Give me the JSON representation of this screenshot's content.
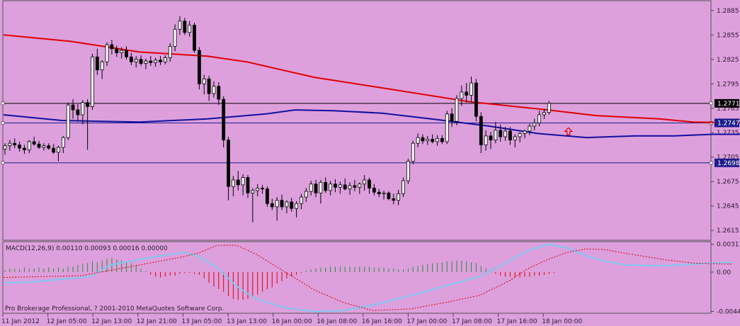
{
  "colors": {
    "background": "#dda0dd",
    "grid_line": "#555555",
    "candle_up": "#ffffff",
    "candle_down": "#000000",
    "ma_red": "#e00000",
    "ma_blue": "#1010a0",
    "hline_black": "#000000",
    "hline_blue": "#1c1c8c",
    "macd_main": "#7ec8f0",
    "macd_signal": "#e00000",
    "hist_pos": "#2e8b3a",
    "hist_neg": "#e00000",
    "arrow": "#e00000"
  },
  "chart_data": {
    "type": "candlestick",
    "symbol": "",
    "price_axis": {
      "ylim": [
        1.2603,
        1.2897
      ],
      "ticks": [
        1.2885,
        1.2855,
        1.2825,
        1.2795,
        1.2765,
        1.2735,
        1.2705,
        1.2675,
        1.2645,
        1.2615
      ]
    },
    "time_labels": [
      "11 Jan 2012",
      "12 Jan 05:00",
      "12 Jan 13:00",
      "12 Jan 21:00",
      "13 Jan 05:00",
      "13 Jan 13:00",
      "16 Jan 00:00",
      "16 Jan 08:00",
      "16 Jan 16:00",
      "17 Jan 00:00",
      "17 Jan 08:00",
      "17 Jan 16:00",
      "18 Jan 00:00"
    ],
    "candles": [
      [
        1.2715,
        1.2722,
        1.2708,
        1.2719
      ],
      [
        1.2719,
        1.2726,
        1.2713,
        1.2722
      ],
      [
        1.2722,
        1.2728,
        1.2716,
        1.272
      ],
      [
        1.272,
        1.2724,
        1.2712,
        1.2716
      ],
      [
        1.2716,
        1.272,
        1.2709,
        1.2714
      ],
      [
        1.2714,
        1.2726,
        1.271,
        1.2724
      ],
      [
        1.2724,
        1.273,
        1.2719,
        1.2721
      ],
      [
        1.2721,
        1.2725,
        1.2715,
        1.2717
      ],
      [
        1.2717,
        1.2722,
        1.2713,
        1.2719
      ],
      [
        1.2719,
        1.2722,
        1.2714,
        1.2716
      ],
      [
        1.2716,
        1.2721,
        1.2709,
        1.2711
      ],
      [
        1.2711,
        1.2719,
        1.27,
        1.2717
      ],
      [
        1.2717,
        1.2731,
        1.271,
        1.2729
      ],
      [
        1.2729,
        1.2772,
        1.2726,
        1.2769
      ],
      [
        1.2769,
        1.2776,
        1.2752,
        1.2763
      ],
      [
        1.2763,
        1.277,
        1.2749,
        1.2757
      ],
      [
        1.2757,
        1.2775,
        1.2745,
        1.2772
      ],
      [
        1.2772,
        1.2776,
        1.2714,
        1.2767
      ],
      [
        1.2767,
        1.2832,
        1.2763,
        1.2828
      ],
      [
        1.2828,
        1.2838,
        1.2806,
        1.2812
      ],
      [
        1.2812,
        1.2824,
        1.2801,
        1.2822
      ],
      [
        1.2822,
        1.2846,
        1.2817,
        1.2843
      ],
      [
        1.2843,
        1.2849,
        1.2831,
        1.2838
      ],
      [
        1.2838,
        1.2842,
        1.2828,
        1.2833
      ],
      [
        1.2833,
        1.284,
        1.2826,
        1.2836
      ],
      [
        1.2836,
        1.2841,
        1.2825,
        1.2828
      ],
      [
        1.2828,
        1.2833,
        1.2818,
        1.2822
      ],
      [
        1.2822,
        1.2829,
        1.2815,
        1.2825
      ],
      [
        1.2825,
        1.283,
        1.2817,
        1.282
      ],
      [
        1.282,
        1.2826,
        1.2813,
        1.2823
      ],
      [
        1.2823,
        1.2829,
        1.2817,
        1.2821
      ],
      [
        1.2821,
        1.2827,
        1.2816,
        1.2824
      ],
      [
        1.2824,
        1.2829,
        1.2818,
        1.2822
      ],
      [
        1.2822,
        1.283,
        1.2819,
        1.2827
      ],
      [
        1.2827,
        1.2845,
        1.2822,
        1.2841
      ],
      [
        1.2841,
        1.2868,
        1.2835,
        1.2862
      ],
      [
        1.2862,
        1.2878,
        1.2855,
        1.2872
      ],
      [
        1.2872,
        1.2876,
        1.2855,
        1.2858
      ],
      [
        1.2858,
        1.2872,
        1.2853,
        1.2867
      ],
      [
        1.2867,
        1.287,
        1.2833,
        1.2836
      ],
      [
        1.2836,
        1.284,
        1.2788,
        1.2795
      ],
      [
        1.2795,
        1.2806,
        1.2782,
        1.2801
      ],
      [
        1.2801,
        1.2805,
        1.2774,
        1.2783
      ],
      [
        1.2783,
        1.2798,
        1.2778,
        1.2792
      ],
      [
        1.2792,
        1.2797,
        1.2769,
        1.2776
      ],
      [
        1.2776,
        1.278,
        1.2717,
        1.2726
      ],
      [
        1.2726,
        1.273,
        1.2652,
        1.2669
      ],
      [
        1.2669,
        1.2682,
        1.2657,
        1.2677
      ],
      [
        1.2677,
        1.2688,
        1.2664,
        1.2671
      ],
      [
        1.2671,
        1.2684,
        1.2658,
        1.268
      ],
      [
        1.268,
        1.2683,
        1.2655,
        1.2661
      ],
      [
        1.2661,
        1.2667,
        1.2625,
        1.2664
      ],
      [
        1.2664,
        1.2672,
        1.2657,
        1.2667
      ],
      [
        1.2667,
        1.2671,
        1.266,
        1.2666
      ],
      [
        1.2666,
        1.2669,
        1.2644,
        1.2648
      ],
      [
        1.2648,
        1.2654,
        1.264,
        1.2644
      ],
      [
        1.2644,
        1.2656,
        1.2627,
        1.2652
      ],
      [
        1.2652,
        1.2659,
        1.264,
        1.2644
      ],
      [
        1.2644,
        1.2652,
        1.2636,
        1.265
      ],
      [
        1.265,
        1.2655,
        1.2638,
        1.2642
      ],
      [
        1.2642,
        1.2651,
        1.2631,
        1.2648
      ],
      [
        1.2648,
        1.266,
        1.2641,
        1.2656
      ],
      [
        1.2656,
        1.2667,
        1.265,
        1.2663
      ],
      [
        1.2663,
        1.2676,
        1.2658,
        1.2672
      ],
      [
        1.2672,
        1.2677,
        1.2656,
        1.2661
      ],
      [
        1.2661,
        1.2677,
        1.2648,
        1.2674
      ],
      [
        1.2674,
        1.268,
        1.2661,
        1.2664
      ],
      [
        1.2664,
        1.2676,
        1.2658,
        1.2672
      ],
      [
        1.2672,
        1.2678,
        1.2662,
        1.2668
      ],
      [
        1.2668,
        1.2675,
        1.266,
        1.2671
      ],
      [
        1.2671,
        1.2679,
        1.2664,
        1.2666
      ],
      [
        1.2666,
        1.2674,
        1.2659,
        1.267
      ],
      [
        1.267,
        1.2677,
        1.2663,
        1.2668
      ],
      [
        1.2668,
        1.2674,
        1.266,
        1.2672
      ],
      [
        1.2672,
        1.2683,
        1.2664,
        1.2677
      ],
      [
        1.2677,
        1.268,
        1.266,
        1.2667
      ],
      [
        1.2667,
        1.2672,
        1.2658,
        1.2662
      ],
      [
        1.2662,
        1.2666,
        1.2656,
        1.266
      ],
      [
        1.266,
        1.2664,
        1.2653,
        1.2661
      ],
      [
        1.2661,
        1.2663,
        1.2652,
        1.2654
      ],
      [
        1.2654,
        1.266,
        1.2647,
        1.2652
      ],
      [
        1.2652,
        1.2665,
        1.2646,
        1.266
      ],
      [
        1.266,
        1.268,
        1.2656,
        1.2676
      ],
      [
        1.2676,
        1.2703,
        1.2672,
        1.27
      ],
      [
        1.27,
        1.2725,
        1.2696,
        1.2722
      ],
      [
        1.2722,
        1.2734,
        1.2717,
        1.2729
      ],
      [
        1.2729,
        1.2733,
        1.2721,
        1.2725
      ],
      [
        1.2725,
        1.2731,
        1.272,
        1.2727
      ],
      [
        1.2727,
        1.2733,
        1.2722,
        1.2724
      ],
      [
        1.2724,
        1.2732,
        1.2719,
        1.2728
      ],
      [
        1.2728,
        1.2732,
        1.2721,
        1.2724
      ],
      [
        1.2724,
        1.2762,
        1.2721,
        1.2758
      ],
      [
        1.2758,
        1.2765,
        1.2742,
        1.2749
      ],
      [
        1.2749,
        1.2781,
        1.2744,
        1.2777
      ],
      [
        1.2777,
        1.2793,
        1.2768,
        1.2785
      ],
      [
        1.2785,
        1.2796,
        1.2772,
        1.2781
      ],
      [
        1.2781,
        1.2804,
        1.2773,
        1.2796
      ],
      [
        1.2796,
        1.2801,
        1.2749,
        1.2755
      ],
      [
        1.2755,
        1.276,
        1.271,
        1.272
      ],
      [
        1.272,
        1.2738,
        1.2713,
        1.2731
      ],
      [
        1.2731,
        1.2736,
        1.2715,
        1.2726
      ],
      [
        1.2726,
        1.2748,
        1.2722,
        1.2738
      ],
      [
        1.2738,
        1.2745,
        1.2724,
        1.273
      ],
      [
        1.273,
        1.2742,
        1.2725,
        1.2737
      ],
      [
        1.2737,
        1.2742,
        1.272,
        1.2726
      ],
      [
        1.2726,
        1.2733,
        1.2717,
        1.273
      ],
      [
        1.273,
        1.2736,
        1.2723,
        1.2734
      ],
      [
        1.2734,
        1.2739,
        1.2728,
        1.2737
      ],
      [
        1.2737,
        1.2746,
        1.2732,
        1.2743
      ],
      [
        1.2743,
        1.2752,
        1.2738,
        1.2747
      ],
      [
        1.2747,
        1.2762,
        1.2743,
        1.2757
      ],
      [
        1.2757,
        1.2764,
        1.2752,
        1.276
      ],
      [
        1.276,
        1.2774,
        1.2757,
        1.2771
      ]
    ],
    "ma_red": [
      [
        0,
        1.2855
      ],
      [
        14,
        1.2847
      ],
      [
        28,
        1.2834
      ],
      [
        42,
        1.2829
      ],
      [
        50,
        1.2822
      ],
      [
        64,
        1.2803
      ],
      [
        80,
        1.2788
      ],
      [
        96,
        1.2773
      ],
      [
        112,
        1.2763
      ],
      [
        122,
        1.2756
      ],
      [
        135,
        1.2752
      ],
      [
        142,
        1.2748
      ],
      [
        152,
        1.2747
      ]
    ],
    "ma_blue": [
      [
        0,
        1.2757
      ],
      [
        12,
        1.275
      ],
      [
        28,
        1.2748
      ],
      [
        42,
        1.2752
      ],
      [
        54,
        1.2758
      ],
      [
        60,
        1.2763
      ],
      [
        68,
        1.2762
      ],
      [
        78,
        1.2759
      ],
      [
        88,
        1.2752
      ],
      [
        100,
        1.2743
      ],
      [
        110,
        1.2734
      ],
      [
        120,
        1.2729
      ],
      [
        130,
        1.2731
      ],
      [
        138,
        1.2731
      ],
      [
        146,
        1.2733
      ],
      [
        152,
        1.2733
      ]
    ],
    "hlines": [
      {
        "price": 1.2771,
        "label": "1.2771",
        "color_key": "hline_black"
      },
      {
        "price": 1.2747,
        "label": "1.2747",
        "color_key": "hline_blue"
      },
      {
        "price": 1.2698,
        "label": "1.2698",
        "color_key": "hline_blue"
      }
    ],
    "arrow": {
      "index": 116,
      "price": 1.2741
    },
    "macd": {
      "label": "MACD(12,26,9) 0.00110 0.00093 0.00016 0.00000",
      "ylim": [
        -0.0046,
        0.0034
      ],
      "ticks": [
        {
          "value": 0.00311,
          "label": "0.00311"
        },
        {
          "value": 0.0,
          "label": "0.00"
        },
        {
          "value": -0.0044,
          "label": "-0.0044"
        }
      ],
      "histogram": [
        0.0002,
        0.0004,
        0.0004,
        0.0003,
        0.0005,
        0.0004,
        0.0004,
        0.0005,
        0.0004,
        0.0005,
        0.0004,
        0.0005,
        0.0004,
        0.0006,
        0.0006,
        0.0008,
        0.0009,
        0.001,
        0.0012,
        0.0011,
        0.0013,
        0.0015,
        0.0016,
        0.0014,
        0.0013,
        0.0011,
        0.001,
        0.0008,
        0.0004,
        0.0001,
        -0.0003,
        -0.0005,
        -0.0006,
        -0.0005,
        -0.0004,
        -0.0004,
        -0.0002,
        -0.0001,
        -0.0001,
        -0.0002,
        -0.0003,
        -0.0007,
        -0.0012,
        -0.0016,
        -0.0019,
        -0.0022,
        -0.0027,
        -0.003,
        -0.0031,
        -0.0031,
        -0.003,
        -0.0027,
        -0.0025,
        -0.0022,
        -0.0019,
        -0.0017,
        -0.0013,
        -0.001,
        -0.0007,
        -0.0005,
        -0.0003,
        -0.0001,
        0.0002,
        0.0003,
        0.0004,
        0.0005,
        0.0005,
        0.0006,
        0.0006,
        0.0006,
        0.0006,
        0.0006,
        0.0006,
        0.0006,
        0.0006,
        0.0006,
        0.0005,
        0.0005,
        0.0005,
        0.0004,
        0.0004,
        0.0003,
        0.0003,
        0.0004,
        0.0006,
        0.0007,
        0.0008,
        0.0009,
        0.001,
        0.001,
        0.0011,
        0.0012,
        0.0012,
        0.0013,
        0.0013,
        0.0012,
        0.0011,
        0.001,
        0.0007,
        0.0004,
        0.0001,
        -0.0002,
        -0.0004,
        -0.0005,
        -0.0005,
        -0.0006,
        -0.0006,
        -0.0005,
        -0.0005,
        -0.0004,
        -0.0004,
        -0.0003,
        -0.0002,
        -0.0001,
        0.0,
        0.0
      ],
      "main": [
        [
          0,
          -0.0012
        ],
        [
          6,
          -0.0011
        ],
        [
          12,
          -0.0008
        ],
        [
          18,
          -0.0005
        ],
        [
          22,
          0.0008
        ],
        [
          30,
          0.0016
        ],
        [
          37,
          0.0022
        ],
        [
          40,
          0.0018
        ],
        [
          44,
          0.0005
        ],
        [
          48,
          -0.0016
        ],
        [
          52,
          -0.003
        ],
        [
          58,
          -0.004
        ],
        [
          64,
          -0.0044
        ],
        [
          70,
          -0.0043
        ],
        [
          76,
          -0.0037
        ],
        [
          84,
          -0.0026
        ],
        [
          90,
          -0.0017
        ],
        [
          98,
          -0.0005
        ],
        [
          104,
          0.0012
        ],
        [
          108,
          0.0024
        ],
        [
          112,
          0.0031
        ],
        [
          116,
          0.0027
        ],
        [
          120,
          0.0018
        ],
        [
          124,
          0.0012
        ],
        [
          128,
          0.0008
        ],
        [
          136,
          0.0007
        ],
        [
          142,
          0.0009
        ],
        [
          146,
          0.001
        ],
        [
          150,
          0.0011
        ]
      ],
      "signal": [
        [
          0,
          -0.0006
        ],
        [
          8,
          -0.0005
        ],
        [
          16,
          -0.0004
        ],
        [
          22,
          0.0002
        ],
        [
          30,
          0.001
        ],
        [
          36,
          0.0016
        ],
        [
          40,
          0.0021
        ],
        [
          44,
          0.003
        ],
        [
          48,
          0.003
        ],
        [
          52,
          0.002
        ],
        [
          58,
          0.0
        ],
        [
          64,
          -0.002
        ],
        [
          70,
          -0.0034
        ],
        [
          76,
          -0.0043
        ],
        [
          84,
          -0.0041
        ],
        [
          90,
          -0.0035
        ],
        [
          98,
          -0.0026
        ],
        [
          104,
          -0.001
        ],
        [
          108,
          0.0004
        ],
        [
          112,
          0.0014
        ],
        [
          116,
          0.0022
        ],
        [
          120,
          0.0026
        ],
        [
          124,
          0.0025
        ],
        [
          128,
          0.0021
        ],
        [
          136,
          0.0014
        ],
        [
          142,
          0.001
        ],
        [
          150,
          0.0009
        ]
      ]
    }
  },
  "copyright": "Pro Brokerage Professional, ? 2001-2010 MetaQuotes Software Corp."
}
